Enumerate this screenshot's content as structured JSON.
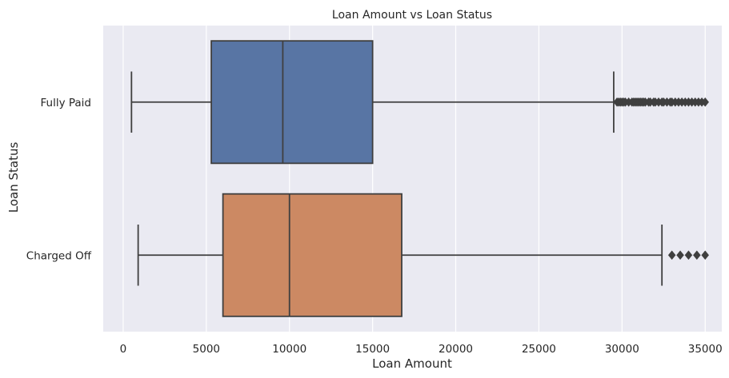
{
  "chart_data": {
    "type": "boxplot",
    "orientation": "horizontal",
    "title": "Loan Amount vs Loan Status",
    "xlabel": "Loan Amount",
    "ylabel": "Loan Status",
    "xlim": [
      -1200,
      36000
    ],
    "xticks": [
      0,
      5000,
      10000,
      15000,
      20000,
      25000,
      30000,
      35000
    ],
    "grid": true,
    "background": "#eaeaf2",
    "categories": [
      "Fully Paid",
      "Charged Off"
    ],
    "boxes": [
      {
        "category": "Fully Paid",
        "color": "#5875a4",
        "whisker_low": 500,
        "q1": 5300,
        "median": 9600,
        "q3": 15000,
        "whisker_high": 29500,
        "outliers": [
          29700,
          29800,
          29900,
          30000,
          30100,
          30200,
          30400,
          30600,
          30700,
          30800,
          30900,
          31000,
          31100,
          31200,
          31300,
          31400,
          31600,
          31700,
          31900,
          32000,
          32200,
          32400,
          32500,
          32700,
          32900,
          33000,
          33200,
          33400,
          33600,
          33800,
          34000,
          34200,
          34400,
          34600,
          34800,
          35000
        ]
      },
      {
        "category": "Charged Off",
        "color": "#cc8963",
        "whisker_low": 900,
        "q1": 6000,
        "median": 10000,
        "q3": 16750,
        "whisker_high": 32400,
        "outliers": [
          33000,
          33500,
          34000,
          34500,
          35000
        ]
      }
    ]
  }
}
